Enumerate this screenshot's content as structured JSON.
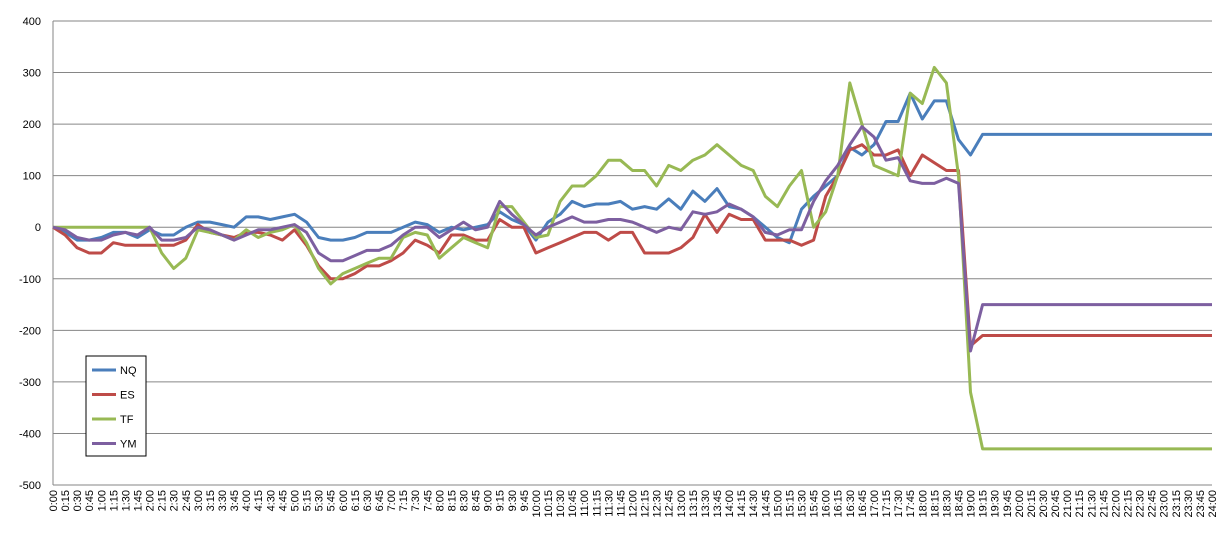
{
  "chart_data": {
    "type": "line",
    "title": "",
    "xlabel": "",
    "ylabel": "",
    "ylim": [
      -500,
      400
    ],
    "yticks": [
      400,
      300,
      200,
      100,
      0,
      -100,
      -200,
      -300,
      -400,
      -500
    ],
    "grid": "horizontal",
    "legend_position": "bottom-left",
    "x_interval_minutes": 15,
    "x": [
      "0:00",
      "0:15",
      "0:30",
      "0:45",
      "1:00",
      "1:15",
      "1:30",
      "1:45",
      "2:00",
      "2:15",
      "2:30",
      "2:45",
      "3:00",
      "3:15",
      "3:30",
      "3:45",
      "4:00",
      "4:15",
      "4:30",
      "4:45",
      "5:00",
      "5:15",
      "5:30",
      "5:45",
      "6:00",
      "6:15",
      "6:30",
      "6:45",
      "7:00",
      "7:15",
      "7:30",
      "7:45",
      "8:00",
      "8:15",
      "8:30",
      "8:45",
      "9:00",
      "9:15",
      "9:30",
      "9:45",
      "10:00",
      "10:15",
      "10:30",
      "10:45",
      "11:00",
      "11:15",
      "11:30",
      "11:45",
      "12:00",
      "12:15",
      "12:30",
      "12:45",
      "13:00",
      "13:15",
      "13:30",
      "13:45",
      "14:00",
      "14:15",
      "14:30",
      "14:45",
      "15:00",
      "15:15",
      "15:30",
      "15:45",
      "16:00",
      "16:15",
      "16:30",
      "16:45",
      "17:00",
      "17:15",
      "17:30",
      "17:45",
      "18:00",
      "18:15",
      "18:30",
      "18:45",
      "19:00",
      "19:15",
      "19:30",
      "19:45",
      "20:00",
      "20:15",
      "20:30",
      "20:45",
      "21:00",
      "21:15",
      "21:30",
      "21:45",
      "22:00",
      "22:15",
      "22:30",
      "22:45",
      "23:00",
      "23:15",
      "23:30",
      "23:45",
      "24:00"
    ],
    "series": [
      {
        "name": "NQ",
        "color": "#4a7ebb",
        "values": [
          0,
          -10,
          -25,
          -25,
          -20,
          -10,
          -10,
          -20,
          -5,
          -15,
          -15,
          0,
          10,
          10,
          5,
          0,
          20,
          20,
          15,
          20,
          25,
          10,
          -20,
          -25,
          -25,
          -20,
          -10,
          -10,
          -10,
          0,
          10,
          5,
          -10,
          0,
          -5,
          0,
          5,
          30,
          15,
          5,
          -25,
          10,
          25,
          50,
          40,
          45,
          45,
          50,
          35,
          40,
          35,
          55,
          35,
          70,
          50,
          75,
          40,
          35,
          20,
          0,
          -20,
          -30,
          35,
          60,
          80,
          100,
          155,
          140,
          160,
          205,
          205,
          260,
          210,
          245,
          245,
          170,
          140,
          180,
          180,
          180,
          180,
          180,
          180,
          180,
          180,
          180,
          180,
          180,
          180,
          180,
          180,
          180,
          180,
          180,
          180,
          180,
          180
        ]
      },
      {
        "name": "ES",
        "color": "#be4b48",
        "values": [
          0,
          -15,
          -40,
          -50,
          -50,
          -30,
          -35,
          -35,
          -35,
          -35,
          -35,
          -25,
          5,
          -10,
          -15,
          -20,
          -10,
          -10,
          -15,
          -25,
          -5,
          -35,
          -75,
          -100,
          -100,
          -90,
          -75,
          -75,
          -65,
          -50,
          -25,
          -35,
          -50,
          -15,
          -15,
          -25,
          -25,
          15,
          0,
          0,
          -50,
          -40,
          -30,
          -20,
          -10,
          -10,
          -25,
          -10,
          -10,
          -50,
          -50,
          -50,
          -40,
          -20,
          25,
          -10,
          25,
          15,
          15,
          -25,
          -25,
          -25,
          -35,
          -25,
          60,
          100,
          150,
          160,
          140,
          140,
          150,
          100,
          140,
          125,
          110,
          110,
          -230,
          -210,
          -210,
          -210,
          -210,
          -210,
          -210,
          -210,
          -210,
          -210,
          -210,
          -210,
          -210,
          -210,
          -210,
          -210,
          -210,
          -210,
          -210,
          -210,
          -210
        ]
      },
      {
        "name": "TF",
        "color": "#98b954",
        "values": [
          0,
          0,
          0,
          0,
          0,
          0,
          0,
          0,
          0,
          -50,
          -80,
          -60,
          -5,
          -10,
          -15,
          -25,
          -5,
          -20,
          -10,
          -5,
          5,
          -30,
          -80,
          -110,
          -90,
          -80,
          -70,
          -60,
          -60,
          -20,
          -10,
          -15,
          -60,
          -40,
          -20,
          -30,
          -40,
          40,
          40,
          10,
          -20,
          -15,
          50,
          80,
          80,
          100,
          130,
          130,
          110,
          110,
          80,
          120,
          110,
          130,
          140,
          160,
          140,
          120,
          110,
          60,
          40,
          80,
          110,
          0,
          30,
          100,
          280,
          200,
          120,
          110,
          100,
          260,
          240,
          310,
          280,
          100,
          -320,
          -430,
          -430,
          -430,
          -430,
          -430,
          -430,
          -430,
          -430,
          -430,
          -430,
          -430,
          -430,
          -430,
          -430,
          -430,
          -430,
          -430,
          -430,
          -430,
          -430
        ]
      },
      {
        "name": "YM",
        "color": "#7d5fa0",
        "values": [
          0,
          -5,
          -20,
          -25,
          -25,
          -15,
          -10,
          -15,
          0,
          -25,
          -25,
          -20,
          0,
          -5,
          -15,
          -25,
          -15,
          -5,
          -5,
          0,
          5,
          -10,
          -50,
          -65,
          -65,
          -55,
          -45,
          -45,
          -35,
          -15,
          0,
          0,
          -20,
          -5,
          10,
          -5,
          0,
          50,
          25,
          5,
          -15,
          0,
          10,
          20,
          10,
          10,
          15,
          15,
          10,
          0,
          -10,
          0,
          -5,
          30,
          25,
          30,
          45,
          35,
          20,
          -10,
          -15,
          -5,
          -5,
          50,
          90,
          120,
          160,
          195,
          175,
          130,
          135,
          90,
          85,
          85,
          95,
          85,
          -240,
          -150,
          -150,
          -150,
          -150,
          -150,
          -150,
          -150,
          -150,
          -150,
          -150,
          -150,
          -150,
          -150,
          -150,
          -150,
          -150,
          -150,
          -150,
          -150,
          -150
        ]
      }
    ]
  }
}
